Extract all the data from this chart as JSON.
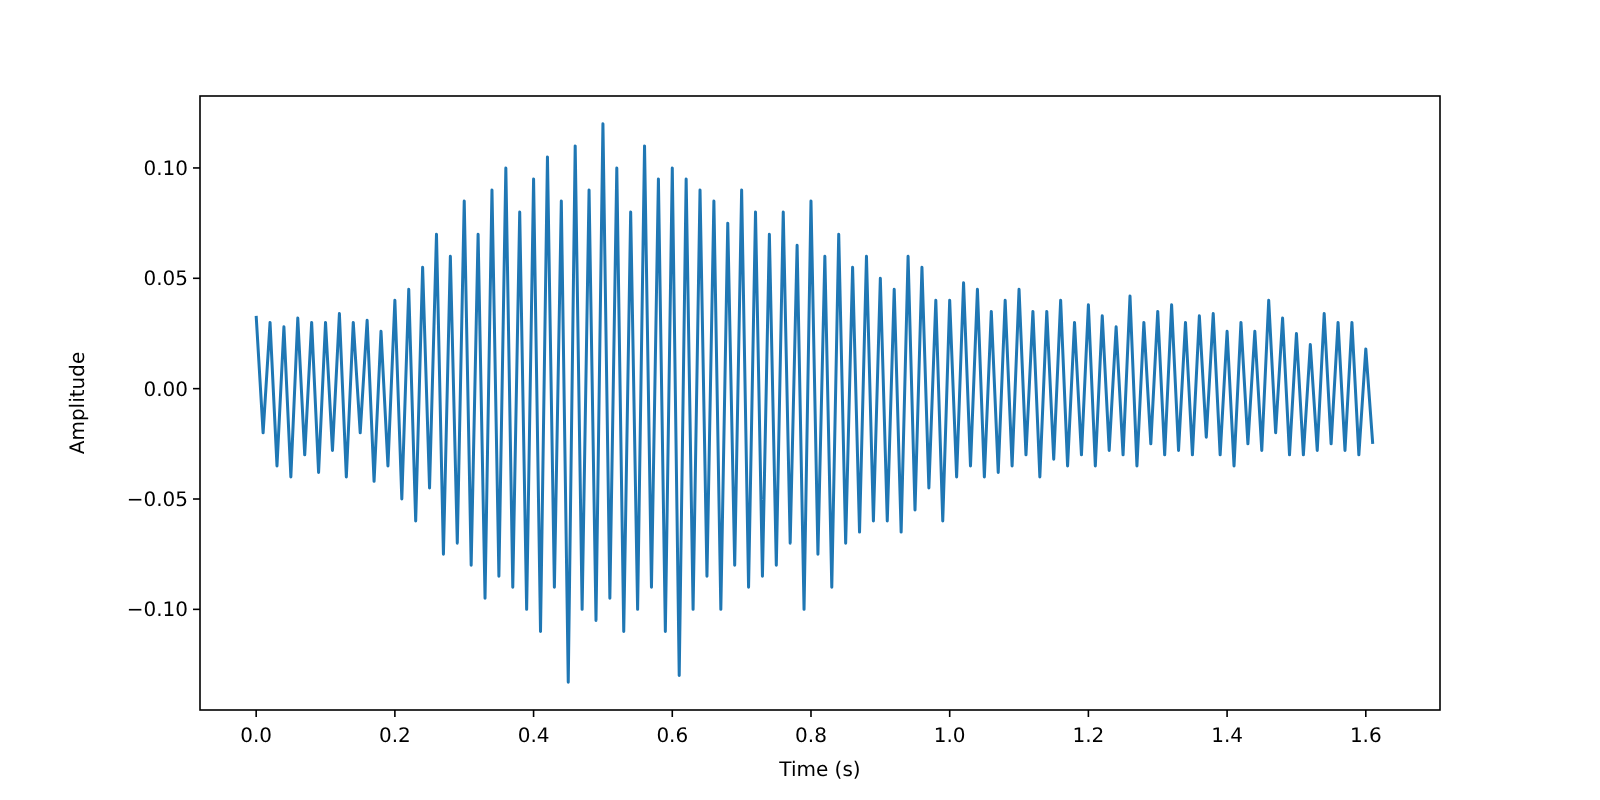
{
  "chart_data": {
    "type": "line",
    "xlabel": "Time (s)",
    "ylabel": "Amplitude",
    "x": [
      0,
      0.01,
      0.02,
      0.03,
      0.04,
      0.05,
      0.06,
      0.07,
      0.08,
      0.09,
      0.1,
      0.11,
      0.12,
      0.13,
      0.14,
      0.15,
      0.16,
      0.17,
      0.18,
      0.19,
      0.2,
      0.21,
      0.22,
      0.23,
      0.24,
      0.25,
      0.26,
      0.27,
      0.28,
      0.29,
      0.3,
      0.31,
      0.32,
      0.33,
      0.34,
      0.35,
      0.36,
      0.37,
      0.38,
      0.39,
      0.4,
      0.41,
      0.42,
      0.43,
      0.44,
      0.45,
      0.46,
      0.47,
      0.48,
      0.49,
      0.5,
      0.51,
      0.52,
      0.53,
      0.54,
      0.55,
      0.56,
      0.57,
      0.58,
      0.59,
      0.6,
      0.61,
      0.62,
      0.63,
      0.64,
      0.65,
      0.66,
      0.67,
      0.68,
      0.69,
      0.7,
      0.71,
      0.72,
      0.73,
      0.74,
      0.75,
      0.76,
      0.77,
      0.78,
      0.79,
      0.8,
      0.81,
      0.82,
      0.83,
      0.84,
      0.85,
      0.86,
      0.87,
      0.88,
      0.89,
      0.9,
      0.91,
      0.92,
      0.93,
      0.94,
      0.95,
      0.96,
      0.97,
      0.98,
      0.99,
      1,
      1.01,
      1.02,
      1.03,
      1.04,
      1.05,
      1.06,
      1.07,
      1.08,
      1.09,
      1.1,
      1.11,
      1.12,
      1.13,
      1.14,
      1.15,
      1.16,
      1.17,
      1.18,
      1.19,
      1.2,
      1.21,
      1.22,
      1.23,
      1.24,
      1.25,
      1.26,
      1.27,
      1.28,
      1.29,
      1.3,
      1.31,
      1.32,
      1.33,
      1.34,
      1.35,
      1.36,
      1.37,
      1.38,
      1.39,
      1.4,
      1.41,
      1.42,
      1.43,
      1.44,
      1.45,
      1.46,
      1.47,
      1.48,
      1.49,
      1.5,
      1.51,
      1.52,
      1.53,
      1.54,
      1.55,
      1.56,
      1.57,
      1.58,
      1.59,
      1.6,
      1.61
    ],
    "series": [
      {
        "color": "#1f77b4",
        "values": [
          0.033,
          -0.02,
          0.03,
          -0.035,
          0.028,
          -0.04,
          0.032,
          -0.03,
          0.03,
          -0.038,
          0.03,
          -0.028,
          0.034,
          -0.04,
          0.03,
          -0.02,
          0.031,
          -0.042,
          0.026,
          -0.035,
          0.04,
          -0.05,
          0.045,
          -0.06,
          0.055,
          -0.045,
          0.07,
          -0.075,
          0.06,
          -0.07,
          0.085,
          -0.08,
          0.07,
          -0.095,
          0.09,
          -0.085,
          0.1,
          -0.09,
          0.08,
          -0.1,
          0.095,
          -0.11,
          0.105,
          -0.09,
          0.085,
          -0.133,
          0.11,
          -0.1,
          0.09,
          -0.105,
          0.12,
          -0.095,
          0.1,
          -0.11,
          0.08,
          -0.1,
          0.11,
          -0.09,
          0.095,
          -0.11,
          0.1,
          -0.13,
          0.095,
          -0.1,
          0.09,
          -0.085,
          0.085,
          -0.1,
          0.075,
          -0.08,
          0.09,
          -0.09,
          0.08,
          -0.085,
          0.07,
          -0.08,
          0.08,
          -0.07,
          0.065,
          -0.1,
          0.085,
          -0.075,
          0.06,
          -0.09,
          0.07,
          -0.07,
          0.055,
          -0.065,
          0.06,
          -0.06,
          0.05,
          -0.06,
          0.045,
          -0.065,
          0.06,
          -0.055,
          0.055,
          -0.045,
          0.04,
          -0.06,
          0.04,
          -0.04,
          0.048,
          -0.035,
          0.045,
          -0.04,
          0.035,
          -0.038,
          0.04,
          -0.035,
          0.045,
          -0.03,
          0.035,
          -0.04,
          0.035,
          -0.032,
          0.04,
          -0.035,
          0.03,
          -0.03,
          0.038,
          -0.035,
          0.033,
          -0.028,
          0.028,
          -0.03,
          0.042,
          -0.035,
          0.03,
          -0.025,
          0.035,
          -0.03,
          0.038,
          -0.028,
          0.03,
          -0.03,
          0.033,
          -0.022,
          0.034,
          -0.03,
          0.026,
          -0.035,
          0.03,
          -0.025,
          0.026,
          -0.028,
          0.04,
          -0.02,
          0.032,
          -0.03,
          0.025,
          -0.03,
          0.02,
          -0.028,
          0.034,
          -0.025,
          0.03,
          -0.028,
          0.03,
          -0.03,
          0.018,
          -0.025
        ]
      }
    ],
    "xlim": [
      -0.081,
      1.707
    ],
    "ylim": [
      -0.1456,
      0.1326
    ],
    "xticks": [
      {
        "value": 0,
        "label": "0.0"
      },
      {
        "value": 0.2,
        "label": "0.2"
      },
      {
        "value": 0.4,
        "label": "0.4"
      },
      {
        "value": 0.6,
        "label": "0.6"
      },
      {
        "value": 0.8,
        "label": "0.8"
      },
      {
        "value": 1,
        "label": "1.0"
      },
      {
        "value": 1.2,
        "label": "1.2"
      },
      {
        "value": 1.4,
        "label": "1.4"
      },
      {
        "value": 1.6,
        "label": "1.6"
      }
    ],
    "yticks": [
      {
        "value": -0.1,
        "label": "−0.10"
      },
      {
        "value": -0.05,
        "label": "−0.05"
      },
      {
        "value": 0,
        "label": "0.00"
      },
      {
        "value": 0.05,
        "label": "0.05"
      },
      {
        "value": 0.1,
        "label": "0.10"
      }
    ],
    "grid": false
  }
}
